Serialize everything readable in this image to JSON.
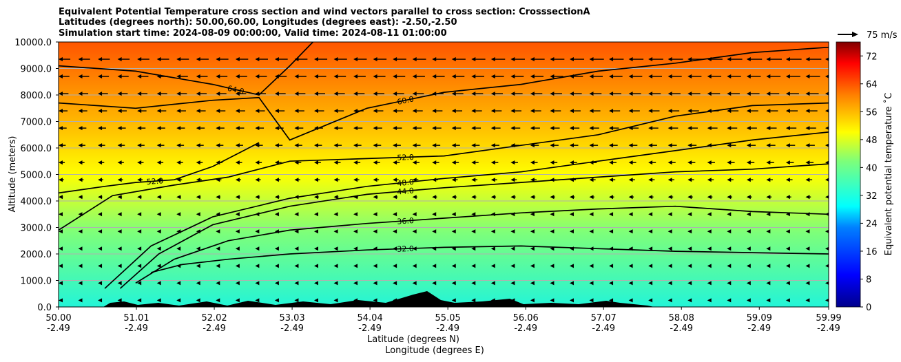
{
  "chart_data": {
    "type": "heatmap",
    "title_lines": [
      "Equivalent Potential Temperature cross section and wind vectors parallel to cross section: CrosssectionA",
      "Latitudes (degrees north): 50.00,60.00, Longitudes (degrees east): -2.50,-2.50",
      "Simulation start time: 2024-08-09 00:00:00, Valid time: 2024-08-11 01:00:00"
    ],
    "xlabel_lines": [
      "Latitude (degrees N)",
      "Longitude (degrees E)"
    ],
    "ylabel": "Altitude (meters)",
    "x_range": [
      50.0,
      59.99
    ],
    "y_range": [
      0,
      10000
    ],
    "x_ticks": [
      {
        "lat": "50.00",
        "lon": "-2.49",
        "value": 50.0
      },
      {
        "lat": "51.01",
        "lon": "-2.49",
        "value": 51.01
      },
      {
        "lat": "52.02",
        "lon": "-2.49",
        "value": 52.02
      },
      {
        "lat": "53.03",
        "lon": "-2.49",
        "value": 53.03
      },
      {
        "lat": "54.04",
        "lon": "-2.49",
        "value": 54.04
      },
      {
        "lat": "55.05",
        "lon": "-2.49",
        "value": 55.05
      },
      {
        "lat": "56.06",
        "lon": "-2.49",
        "value": 56.06
      },
      {
        "lat": "57.07",
        "lon": "-2.49",
        "value": 57.07
      },
      {
        "lat": "58.08",
        "lon": "-2.49",
        "value": 58.08
      },
      {
        "lat": "59.09",
        "lon": "-2.49",
        "value": 59.09
      },
      {
        "lat": "59.99",
        "lon": "-2.49",
        "value": 59.99
      }
    ],
    "y_ticks": [
      {
        "label": "0.0",
        "value": 0
      },
      {
        "label": "1000.0",
        "value": 1000
      },
      {
        "label": "2000.0",
        "value": 2000
      },
      {
        "label": "3000.0",
        "value": 3000
      },
      {
        "label": "4000.0",
        "value": 4000
      },
      {
        "label": "5000.0",
        "value": 5000
      },
      {
        "label": "6000.0",
        "value": 6000
      },
      {
        "label": "7000.0",
        "value": 7000
      },
      {
        "label": "8000.0",
        "value": 8000
      },
      {
        "label": "9000.0",
        "value": 9000
      },
      {
        "label": "10000.0",
        "value": 10000
      }
    ],
    "grid": "horizontal",
    "colorbar": {
      "label": "Equivalent potential temperature ˚C",
      "range": [
        0,
        76
      ],
      "ticks": [
        0,
        8,
        16,
        24,
        32,
        40,
        48,
        56,
        64,
        72
      ],
      "colormap": "jet",
      "colors": [
        "#00008b",
        "#0000ff",
        "#0080ff",
        "#00ffff",
        "#7dff7a",
        "#ffff00",
        "#ff8000",
        "#ff0000",
        "#800000"
      ]
    },
    "wind_key": {
      "label": "75 m/s",
      "speed": 75
    },
    "wind_direction": "southward (toward lower latitude)",
    "contours": [
      {
        "level": "32.0",
        "points": [
          [
            51.2,
            1300
          ],
          [
            51.6,
            1600
          ],
          [
            52.2,
            1800
          ],
          [
            53.0,
            2000
          ],
          [
            54.0,
            2150
          ],
          [
            55.0,
            2250
          ],
          [
            56.0,
            2300
          ],
          [
            57.0,
            2200
          ],
          [
            58.0,
            2100
          ],
          [
            59.0,
            2050
          ],
          [
            59.99,
            2000
          ]
        ]
      },
      {
        "level": "36.0",
        "points": [
          [
            51.0,
            900
          ],
          [
            51.5,
            1800
          ],
          [
            52.2,
            2500
          ],
          [
            53.0,
            2900
          ],
          [
            54.0,
            3150
          ],
          [
            55.0,
            3350
          ],
          [
            56.0,
            3550
          ],
          [
            57.0,
            3700
          ],
          [
            58.0,
            3800
          ],
          [
            59.0,
            3600
          ],
          [
            59.99,
            3500
          ]
        ]
      },
      {
        "level": "44.0",
        "points": [
          [
            50.8,
            700
          ],
          [
            51.3,
            2000
          ],
          [
            52.0,
            3100
          ],
          [
            53.0,
            3800
          ],
          [
            54.0,
            4250
          ],
          [
            55.0,
            4500
          ],
          [
            56.0,
            4700
          ],
          [
            57.0,
            4900
          ],
          [
            58.0,
            5100
          ],
          [
            59.0,
            5200
          ],
          [
            59.99,
            5400
          ]
        ]
      },
      {
        "level": "48.0",
        "points": [
          [
            50.6,
            700
          ],
          [
            51.2,
            2300
          ],
          [
            52.0,
            3400
          ],
          [
            53.0,
            4100
          ],
          [
            54.0,
            4550
          ],
          [
            55.0,
            4850
          ],
          [
            56.0,
            5100
          ],
          [
            57.0,
            5500
          ],
          [
            58.0,
            5900
          ],
          [
            59.0,
            6300
          ],
          [
            59.99,
            6600
          ]
        ]
      },
      {
        "level": "52.0",
        "points": [
          [
            50.0,
            2900
          ],
          [
            50.7,
            4200
          ],
          [
            51.5,
            4600
          ],
          [
            52.2,
            4900
          ],
          [
            53.0,
            5500
          ],
          [
            54.0,
            5600
          ],
          [
            55.0,
            5700
          ],
          [
            56.0,
            6100
          ],
          [
            57.0,
            6500
          ],
          [
            58.0,
            7200
          ],
          [
            59.0,
            7600
          ],
          [
            59.99,
            7700
          ]
        ]
      },
      {
        "level": "52.0",
        "points": [
          [
            50.0,
            4300
          ],
          [
            50.6,
            4550
          ],
          [
            51.0,
            4700
          ],
          [
            51.5,
            4800
          ],
          [
            52.0,
            5300
          ],
          [
            52.4,
            5900
          ],
          [
            52.6,
            6200
          ]
        ]
      },
      {
        "level": "60.0",
        "points": [
          [
            50.0,
            7700
          ],
          [
            51.0,
            7500
          ],
          [
            52.0,
            7800
          ],
          [
            52.6,
            7900
          ],
          [
            53.0,
            6300
          ],
          [
            54.0,
            7500
          ],
          [
            55.0,
            8100
          ],
          [
            56.0,
            8400
          ],
          [
            57.0,
            8900
          ],
          [
            58.0,
            9200
          ],
          [
            59.0,
            9600
          ],
          [
            59.99,
            9800
          ]
        ]
      },
      {
        "level": "64.0",
        "points": [
          [
            50.0,
            9100
          ],
          [
            51.0,
            8900
          ],
          [
            52.0,
            8400
          ],
          [
            52.6,
            8000
          ],
          [
            53.0,
            9100
          ],
          [
            53.3,
            10000
          ]
        ]
      }
    ]
  }
}
